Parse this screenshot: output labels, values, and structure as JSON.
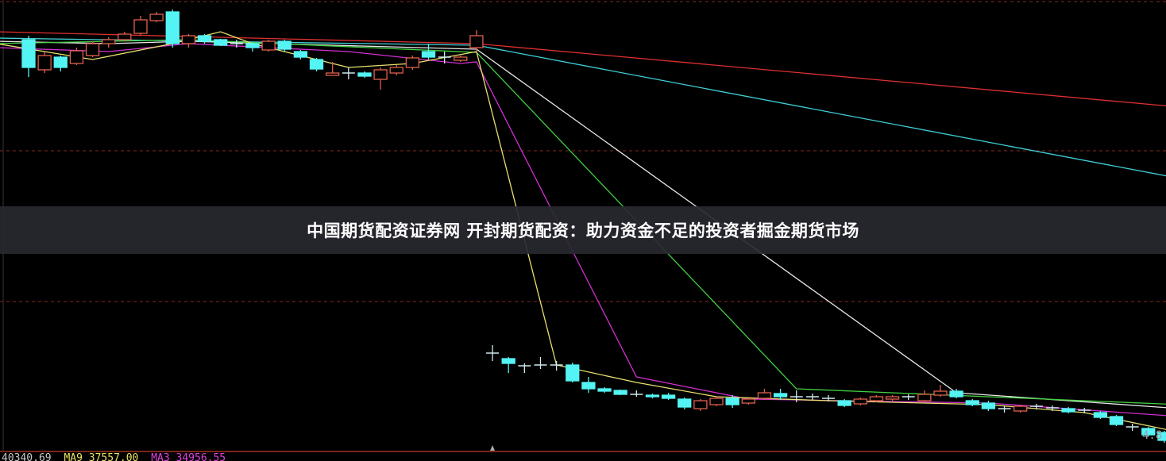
{
  "banner": {
    "title": "中国期货配资证券网 开封期货配资：助力资金不足的投资者掘金期货市场"
  },
  "status_bar": {
    "value": "40340.69",
    "ma9_label": "MA9 37557.00",
    "ma3_label": "MA3 34956.55"
  },
  "corner_label": "4.8",
  "colors": {
    "background": "#000000",
    "grid": "#8a2a20",
    "up_candle": "#e0604c",
    "down_candle": "#54f4f4",
    "cross_candle": "#cfe8ee",
    "status_value": "#c8c8c8",
    "status_ma9": "#e8e060",
    "status_ma3": "#e040e0"
  },
  "chart_data": {
    "type": "candlestick",
    "title": "",
    "xlabel": "",
    "ylabel": "",
    "grid": true,
    "ylim": [
      19,
      600
    ],
    "candles": [
      [
        550,
        515,
        555,
        503
      ],
      [
        512,
        530,
        535,
        508
      ],
      [
        528,
        515,
        530,
        510
      ],
      [
        520,
        536,
        540,
        518
      ],
      [
        530,
        545,
        548,
        528
      ],
      [
        545,
        550,
        553,
        540
      ],
      [
        550,
        557,
        560,
        548
      ],
      [
        558,
        575,
        580,
        556
      ],
      [
        574,
        582,
        585,
        572
      ],
      [
        585,
        545,
        588,
        540
      ],
      [
        545,
        555,
        557,
        540
      ],
      [
        555,
        548,
        557,
        545
      ],
      [
        550,
        543,
        551,
        542
      ],
      [
        545,
        544,
        550,
        540
      ],
      [
        545,
        540,
        547,
        535
      ],
      [
        537,
        548,
        550,
        535
      ],
      [
        548,
        538,
        550,
        535
      ],
      [
        535,
        528,
        537,
        525
      ],
      [
        525,
        513,
        527,
        510
      ],
      [
        505,
        508,
        522,
        505
      ],
      [
        508,
        507,
        515,
        500
      ],
      [
        508,
        504,
        510,
        502
      ],
      [
        500,
        512,
        515,
        487
      ],
      [
        508,
        515,
        518,
        505
      ],
      [
        515,
        527,
        530,
        512
      ],
      [
        535,
        528,
        545,
        525
      ],
      [
        528,
        527,
        535,
        520
      ],
      [
        524,
        528,
        530,
        522
      ],
      [
        540,
        555,
        562,
        535
      ],
      [
        155,
        154,
        165,
        145
      ],
      [
        148,
        142,
        150,
        130
      ],
      [
        139,
        138,
        142,
        130
      ],
      [
        140,
        139,
        150,
        135
      ],
      [
        140,
        139,
        145,
        133
      ],
      [
        140,
        120,
        143,
        118
      ],
      [
        118,
        110,
        125,
        105
      ],
      [
        110,
        107,
        112,
        105
      ],
      [
        108,
        103,
        109,
        102
      ],
      [
        103,
        102,
        108,
        100
      ],
      [
        102,
        100,
        104,
        98
      ],
      [
        102,
        98,
        105,
        96
      ],
      [
        97,
        87,
        99,
        84
      ],
      [
        85,
        95,
        97,
        82
      ],
      [
        90,
        98,
        101,
        88
      ],
      [
        98,
        90,
        102,
        86
      ],
      [
        92,
        97,
        100,
        90
      ],
      [
        98,
        105,
        110,
        96
      ],
      [
        104,
        100,
        110,
        96
      ],
      [
        100,
        100,
        108,
        93
      ],
      [
        100,
        99,
        104,
        96
      ],
      [
        98,
        97,
        102,
        94
      ],
      [
        95,
        89,
        97,
        87
      ],
      [
        91,
        97,
        99,
        89
      ],
      [
        95,
        100,
        102,
        93
      ],
      [
        97,
        100,
        102,
        95
      ],
      [
        100,
        99,
        103,
        96
      ],
      [
        95,
        103,
        108,
        93
      ],
      [
        102,
        107,
        115,
        100
      ],
      [
        107,
        100,
        110,
        98
      ],
      [
        95,
        90,
        97,
        88
      ],
      [
        92,
        85,
        95,
        82
      ],
      [
        85,
        84,
        89,
        80
      ],
      [
        82,
        88,
        90,
        80
      ],
      [
        88,
        87,
        91,
        84
      ],
      [
        86,
        85,
        89,
        82
      ],
      [
        85,
        81,
        87,
        79
      ],
      [
        83,
        82,
        86,
        79
      ],
      [
        80,
        74,
        82,
        72
      ],
      [
        75,
        65,
        77,
        63
      ],
      [
        62,
        61,
        66,
        57
      ],
      [
        60,
        52,
        62,
        50
      ],
      [
        55,
        45,
        57,
        42
      ]
    ],
    "series": [
      {
        "color": "#e03030",
        "points": [
          [
            -2,
            560
          ],
          [
            28,
            545
          ],
          [
            72,
            465
          ]
        ]
      },
      {
        "color": "#40d0d8",
        "points": [
          [
            -2,
            552
          ],
          [
            28,
            543
          ],
          [
            72,
            375
          ]
        ]
      },
      {
        "color": "#e8e8e8",
        "points": [
          [
            -2,
            548
          ],
          [
            5,
            545
          ],
          [
            10,
            548
          ],
          [
            28,
            538
          ],
          [
            58,
            105
          ],
          [
            72,
            85
          ]
        ]
      },
      {
        "color": "#40d040",
        "points": [
          [
            -2,
            545
          ],
          [
            10,
            550
          ],
          [
            28,
            534
          ],
          [
            48,
            110
          ],
          [
            72,
            90
          ]
        ]
      },
      {
        "color": "#d030d0",
        "points": [
          [
            -2,
            540
          ],
          [
            5,
            535
          ],
          [
            10,
            545
          ],
          [
            20,
            535
          ],
          [
            27,
            520
          ],
          [
            28,
            522
          ],
          [
            38,
            125
          ],
          [
            45,
            97
          ],
          [
            60,
            92
          ],
          [
            72,
            75
          ]
        ]
      },
      {
        "color": "#e8e070",
        "points": [
          [
            -2,
            545
          ],
          [
            4,
            525
          ],
          [
            9,
            545
          ],
          [
            12,
            560
          ],
          [
            14,
            545
          ],
          [
            20,
            515
          ],
          [
            24,
            520
          ],
          [
            28,
            535
          ],
          [
            33,
            140
          ],
          [
            38,
            118
          ],
          [
            43,
            100
          ],
          [
            50,
            95
          ],
          [
            60,
            90
          ],
          [
            66,
            80
          ],
          [
            72,
            55
          ]
        ]
      }
    ],
    "gridlines": [
      598,
      410,
      220
    ]
  }
}
